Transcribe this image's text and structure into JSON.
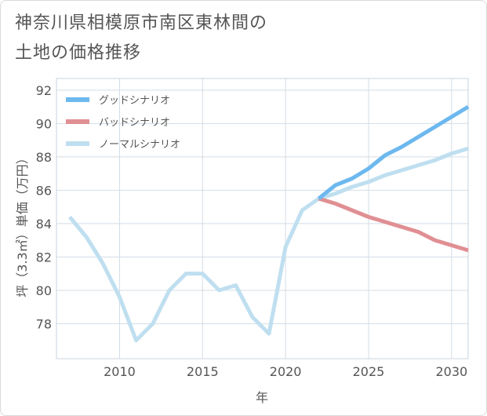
{
  "title_line1": "神奈川県相模原市南区東林間の",
  "title_line2": "土地の価格推移",
  "chart_data": {
    "type": "line",
    "title": "神奈川県相模原市南区東林間の土地の価格推移",
    "xlabel": "年",
    "ylabel": "坪（3.3㎡）単価（万円）",
    "xlim": [
      2006.2,
      2031
    ],
    "ylim": [
      75.9,
      92.7
    ],
    "xticks": [
      2010,
      2015,
      2020,
      2025,
      2030
    ],
    "yticks": [
      78,
      80,
      82,
      84,
      86,
      88,
      90,
      92
    ],
    "grid": true,
    "legend_position": "top-left",
    "series": [
      {
        "name": "グッドシナリオ",
        "color": "#6cb8ef",
        "x": [
          2022,
          2023,
          2024,
          2025,
          2026,
          2027,
          2028,
          2029,
          2030,
          2031
        ],
        "y": [
          85.5,
          86.3,
          86.7,
          87.3,
          88.1,
          88.6,
          89.2,
          89.8,
          90.4,
          91.0
        ]
      },
      {
        "name": "バッドシナリオ",
        "color": "#e08f93",
        "x": [
          2022,
          2023,
          2024,
          2025,
          2026,
          2027,
          2028,
          2029,
          2030,
          2031
        ],
        "y": [
          85.5,
          85.2,
          84.8,
          84.4,
          84.1,
          83.8,
          83.5,
          83.0,
          82.7,
          82.4
        ]
      },
      {
        "name": "ノーマルシナリオ",
        "color": "#bfdff0",
        "x": [
          2007,
          2008,
          2009,
          2010,
          2011,
          2012,
          2013,
          2014,
          2015,
          2016,
          2017,
          2018,
          2019,
          2020,
          2021,
          2022,
          2023,
          2024,
          2025,
          2026,
          2027,
          2028,
          2029,
          2030,
          2031
        ],
        "y": [
          84.4,
          83.2,
          81.6,
          79.6,
          77.0,
          78.0,
          80.0,
          81.0,
          81.0,
          80.0,
          80.3,
          78.4,
          77.4,
          82.6,
          84.8,
          85.5,
          85.8,
          86.2,
          86.5,
          86.9,
          87.2,
          87.5,
          87.8,
          88.2,
          88.5
        ]
      }
    ]
  }
}
